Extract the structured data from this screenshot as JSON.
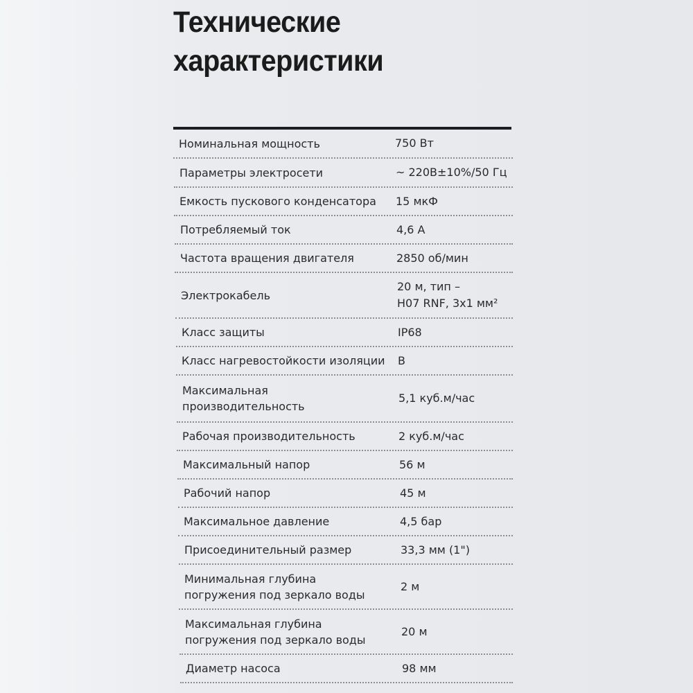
{
  "title": [
    "Технические",
    "характеристики"
  ],
  "specs": [
    {
      "label": "Номинальная мощность",
      "value": "750 Вт"
    },
    {
      "label": "Параметры электросети",
      "value": "~ 220В±10%/50 Гц"
    },
    {
      "label": "Емкость пускового конденсатора",
      "value": "15 мкФ"
    },
    {
      "label": "Потребляемый ток",
      "value": "4,6 А"
    },
    {
      "label": "Частота вращения двигателя",
      "value": "2850 об/мин"
    },
    {
      "label": "Электрокабель",
      "value": "20 м, тип –\nH07 RNF, 3x1 мм²"
    },
    {
      "label": "Класс защиты",
      "value": "IP68"
    },
    {
      "label": "Класс нагревостойкости изоляции",
      "value": "B"
    },
    {
      "label": "Максимальная\nпроизводительность",
      "value": "5,1 куб.м/час"
    },
    {
      "label": "Рабочая производительность",
      "value": "2 куб.м/час"
    },
    {
      "label": "Максимальный напор",
      "value": "56 м"
    },
    {
      "label": "Рабочий напор",
      "value": "45 м"
    },
    {
      "label": "Максимальное давление",
      "value": "4,5 бар"
    },
    {
      "label": "Присоединительный размер",
      "value": "33,3 мм (1\")"
    },
    {
      "label": "Минимальная глубина\nпогружения под зеркало воды",
      "value": "2 м"
    },
    {
      "label": "Максимальная глубина\nпогружения под зеркало воды",
      "value": "20 м"
    },
    {
      "label": "Диаметр насоса",
      "value": "98 мм"
    }
  ]
}
